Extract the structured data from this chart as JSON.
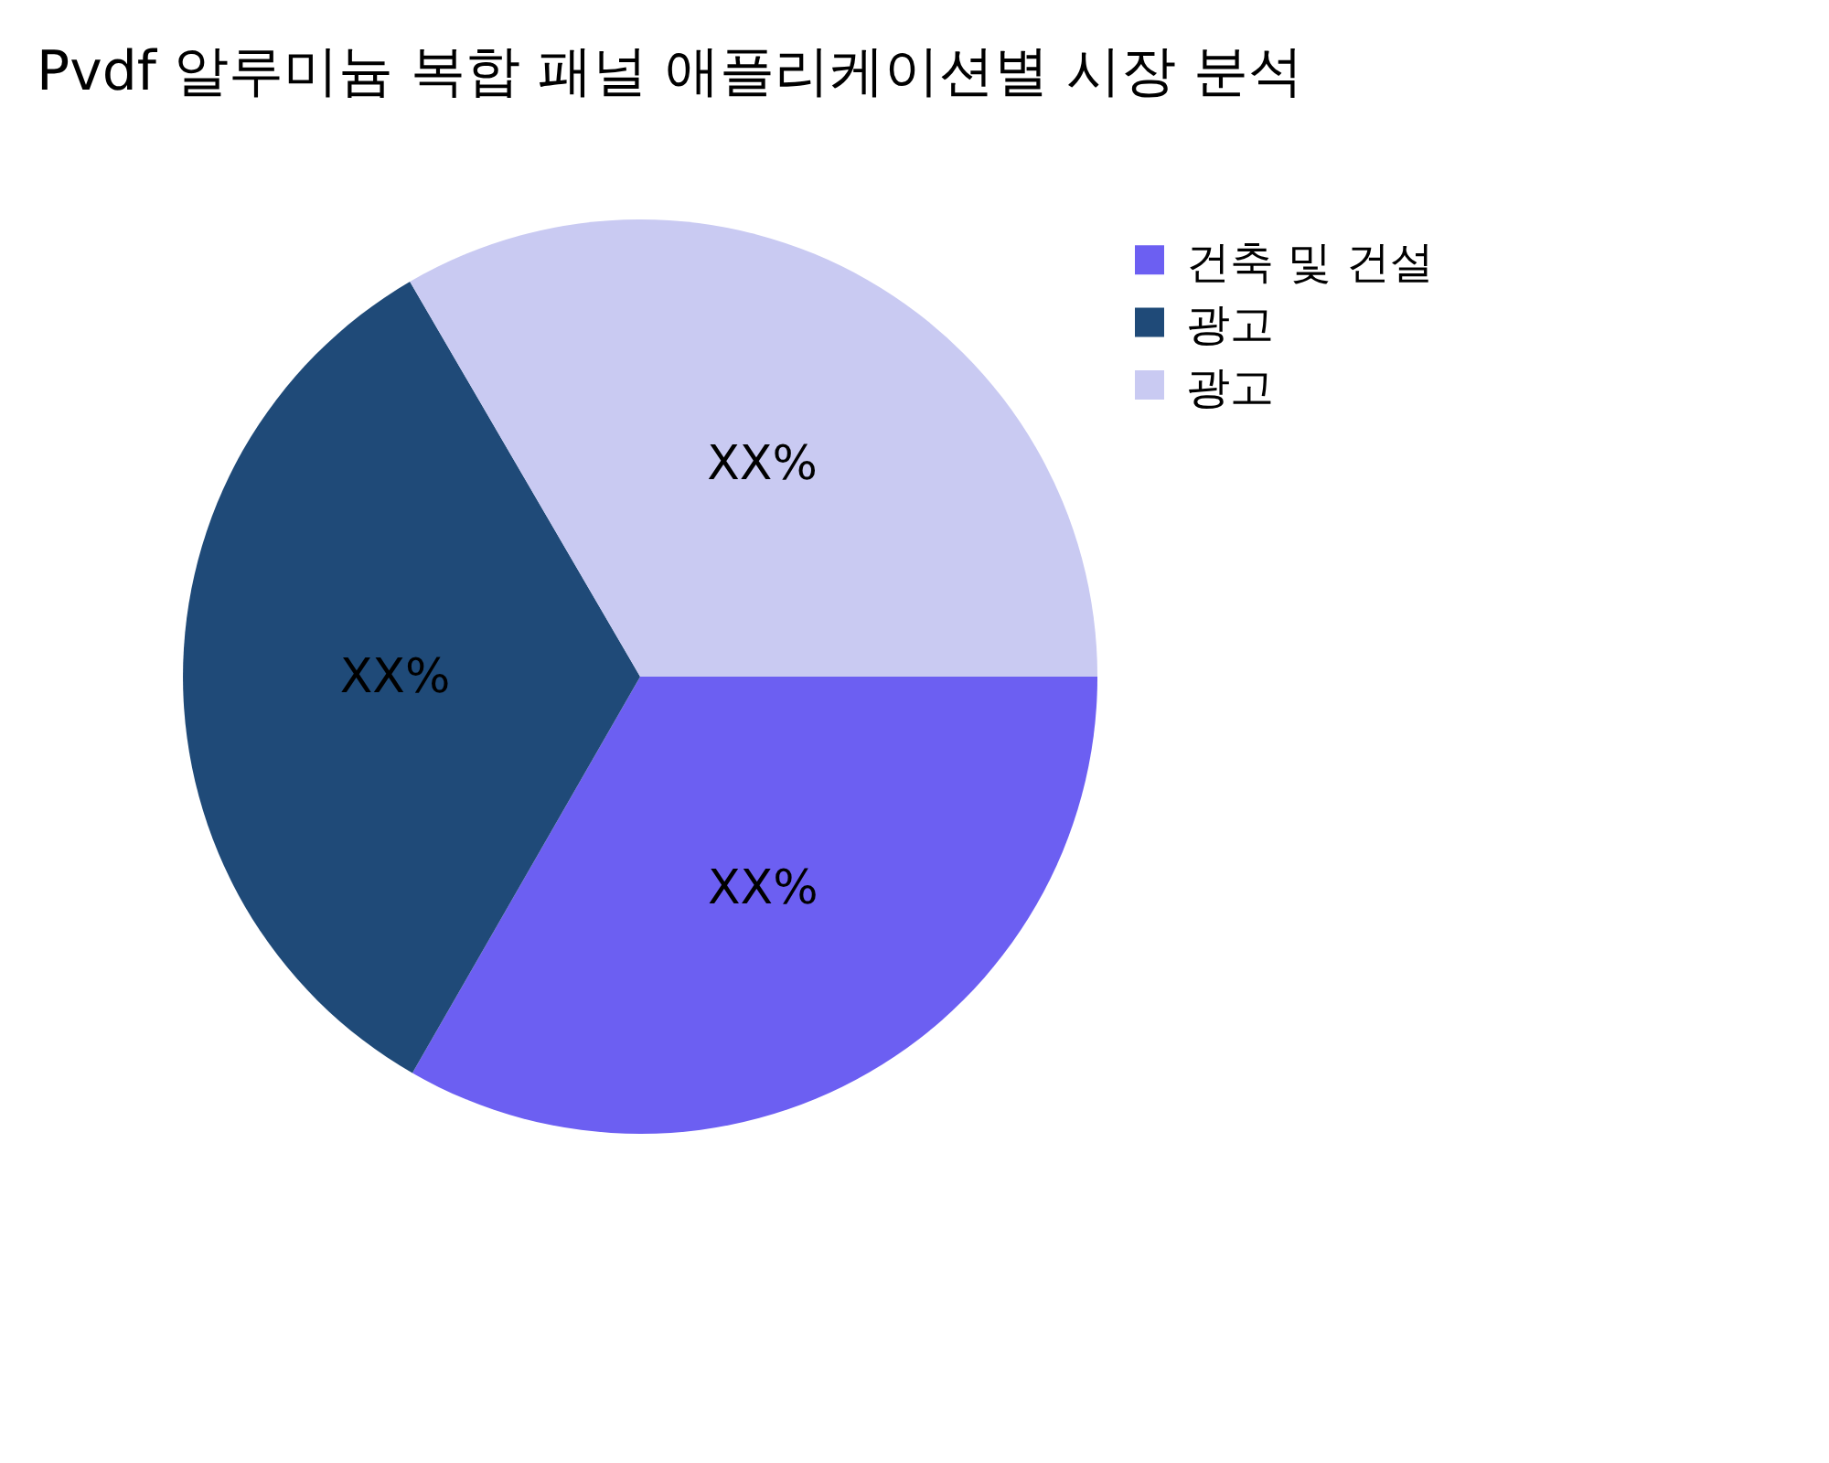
{
  "chart_data": {
    "type": "pie",
    "title": "Pvdf 알루미늄 복합 패널 애플리케이션별 시장 분석",
    "categories": [
      "건축 및 건설",
      "광고",
      "광고"
    ],
    "values": [
      33.3,
      33.3,
      33.4
    ],
    "colors": [
      "#6c5ff2",
      "#1f4a78",
      "#c9caf2"
    ],
    "value_labels": [
      "XX%",
      "XX%",
      "XX%"
    ],
    "legend": "top right"
  }
}
